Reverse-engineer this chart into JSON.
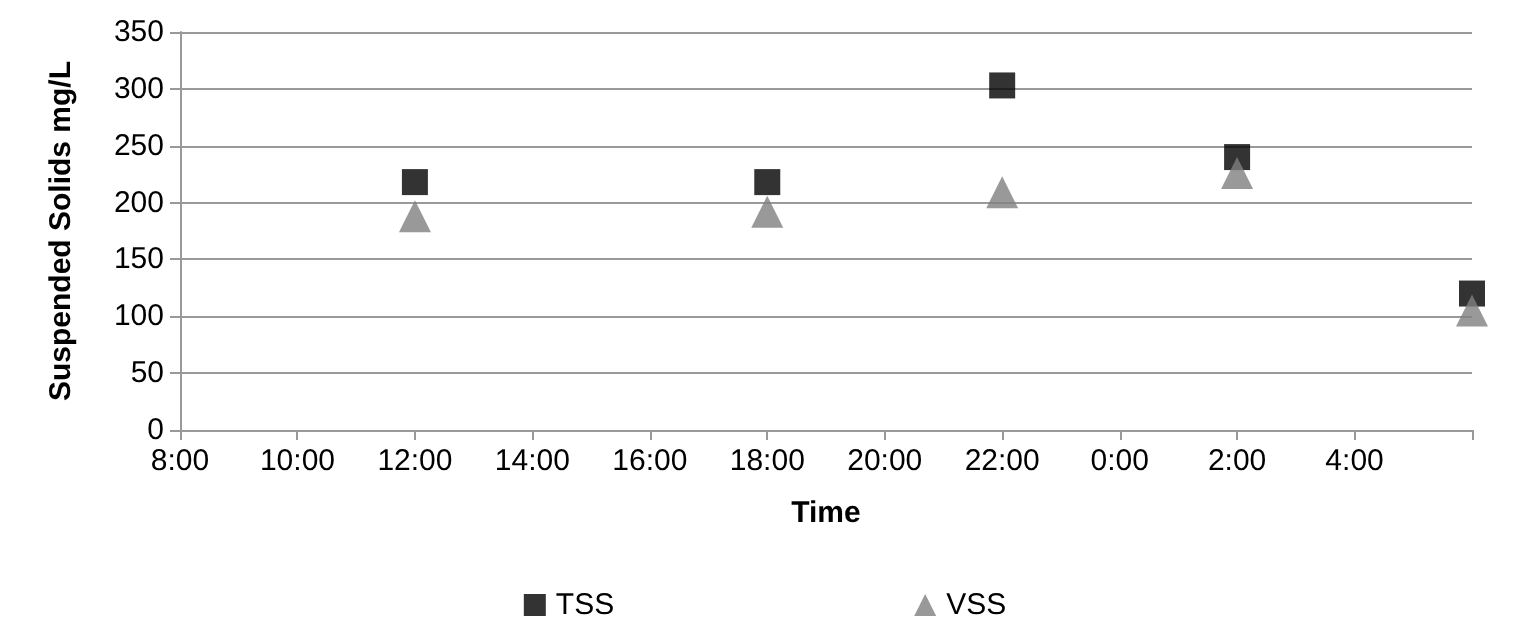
{
  "chart_data": {
    "type": "scatter",
    "xlabel": "Time",
    "ylabel": "Suspended Solids mg/L",
    "xlim": [
      "2000-01-01T08:00",
      "2000-01-02T06:00"
    ],
    "xticks": [
      {
        "value": "2000-01-01T08:00",
        "label": "8:00"
      },
      {
        "value": "2000-01-01T10:00",
        "label": "10:00"
      },
      {
        "value": "2000-01-01T12:00",
        "label": "12:00"
      },
      {
        "value": "2000-01-01T14:00",
        "label": "14:00"
      },
      {
        "value": "2000-01-01T16:00",
        "label": "16:00"
      },
      {
        "value": "2000-01-01T18:00",
        "label": "18:00"
      },
      {
        "value": "2000-01-01T20:00",
        "label": "20:00"
      },
      {
        "value": "2000-01-01T22:00",
        "label": "22:00"
      },
      {
        "value": "2000-01-02T00:00",
        "label": "0:00"
      },
      {
        "value": "2000-01-02T02:00",
        "label": "2:00"
      },
      {
        "value": "2000-01-02T04:00",
        "label": "4:00"
      },
      {
        "value": "2000-01-02T06:00",
        "label": null
      }
    ],
    "ylim": [
      0,
      350
    ],
    "yticks": [
      0,
      50,
      100,
      150,
      200,
      250,
      300,
      350
    ],
    "grid": "y",
    "legend": "bottom",
    "x": [
      "2000-01-01T12:00",
      "2000-01-01T18:00",
      "2000-01-01T22:00",
      "2000-01-02T02:00",
      "2000-01-02T06:00"
    ],
    "series": [
      {
        "name": "TSS",
        "color": "#000000",
        "marker": "square",
        "values": [
          218,
          218,
          303,
          240,
          120
        ]
      },
      {
        "name": "VSS",
        "color": "#808080",
        "marker": "triangle",
        "values": [
          188,
          192,
          209,
          226,
          105
        ]
      }
    ]
  }
}
